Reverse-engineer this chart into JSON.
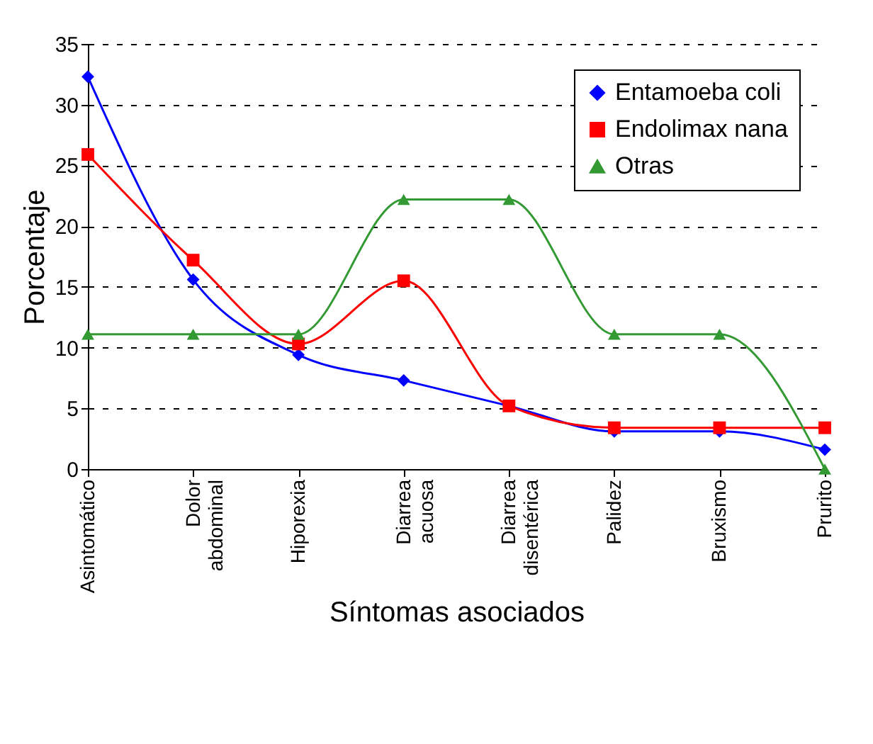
{
  "chart_data": {
    "type": "line",
    "xlabel": "Síntomas asociados",
    "ylabel": "Porcentaje",
    "categories": [
      "Asintomático",
      "Dolor abdominal",
      "Hiporexia",
      "Diarrea acuosa",
      "Diarrea disentérica",
      "Palidez",
      "Bruxismo",
      "Prurito"
    ],
    "series": [
      {
        "name": "Entamoeba coli",
        "color": "#0000ff",
        "marker": "diamond",
        "values": [
          32.3,
          15.6,
          9.4,
          7.3,
          5.2,
          3.1,
          3.1,
          1.6
        ]
      },
      {
        "name": "Endolimax nana",
        "color": "#ff0000",
        "marker": "square",
        "values": [
          25.9,
          17.2,
          10.3,
          15.5,
          5.2,
          3.4,
          3.4,
          3.4
        ]
      },
      {
        "name": "Otras",
        "color": "#339933",
        "marker": "triangle",
        "values": [
          11.1,
          11.1,
          11.1,
          22.2,
          22.2,
          11.1,
          11.1,
          0
        ]
      }
    ],
    "ylim": [
      0,
      35
    ],
    "yticks": [
      0,
      5,
      10,
      15,
      20,
      25,
      30,
      35
    ],
    "grid": "y",
    "legend": "top right"
  }
}
